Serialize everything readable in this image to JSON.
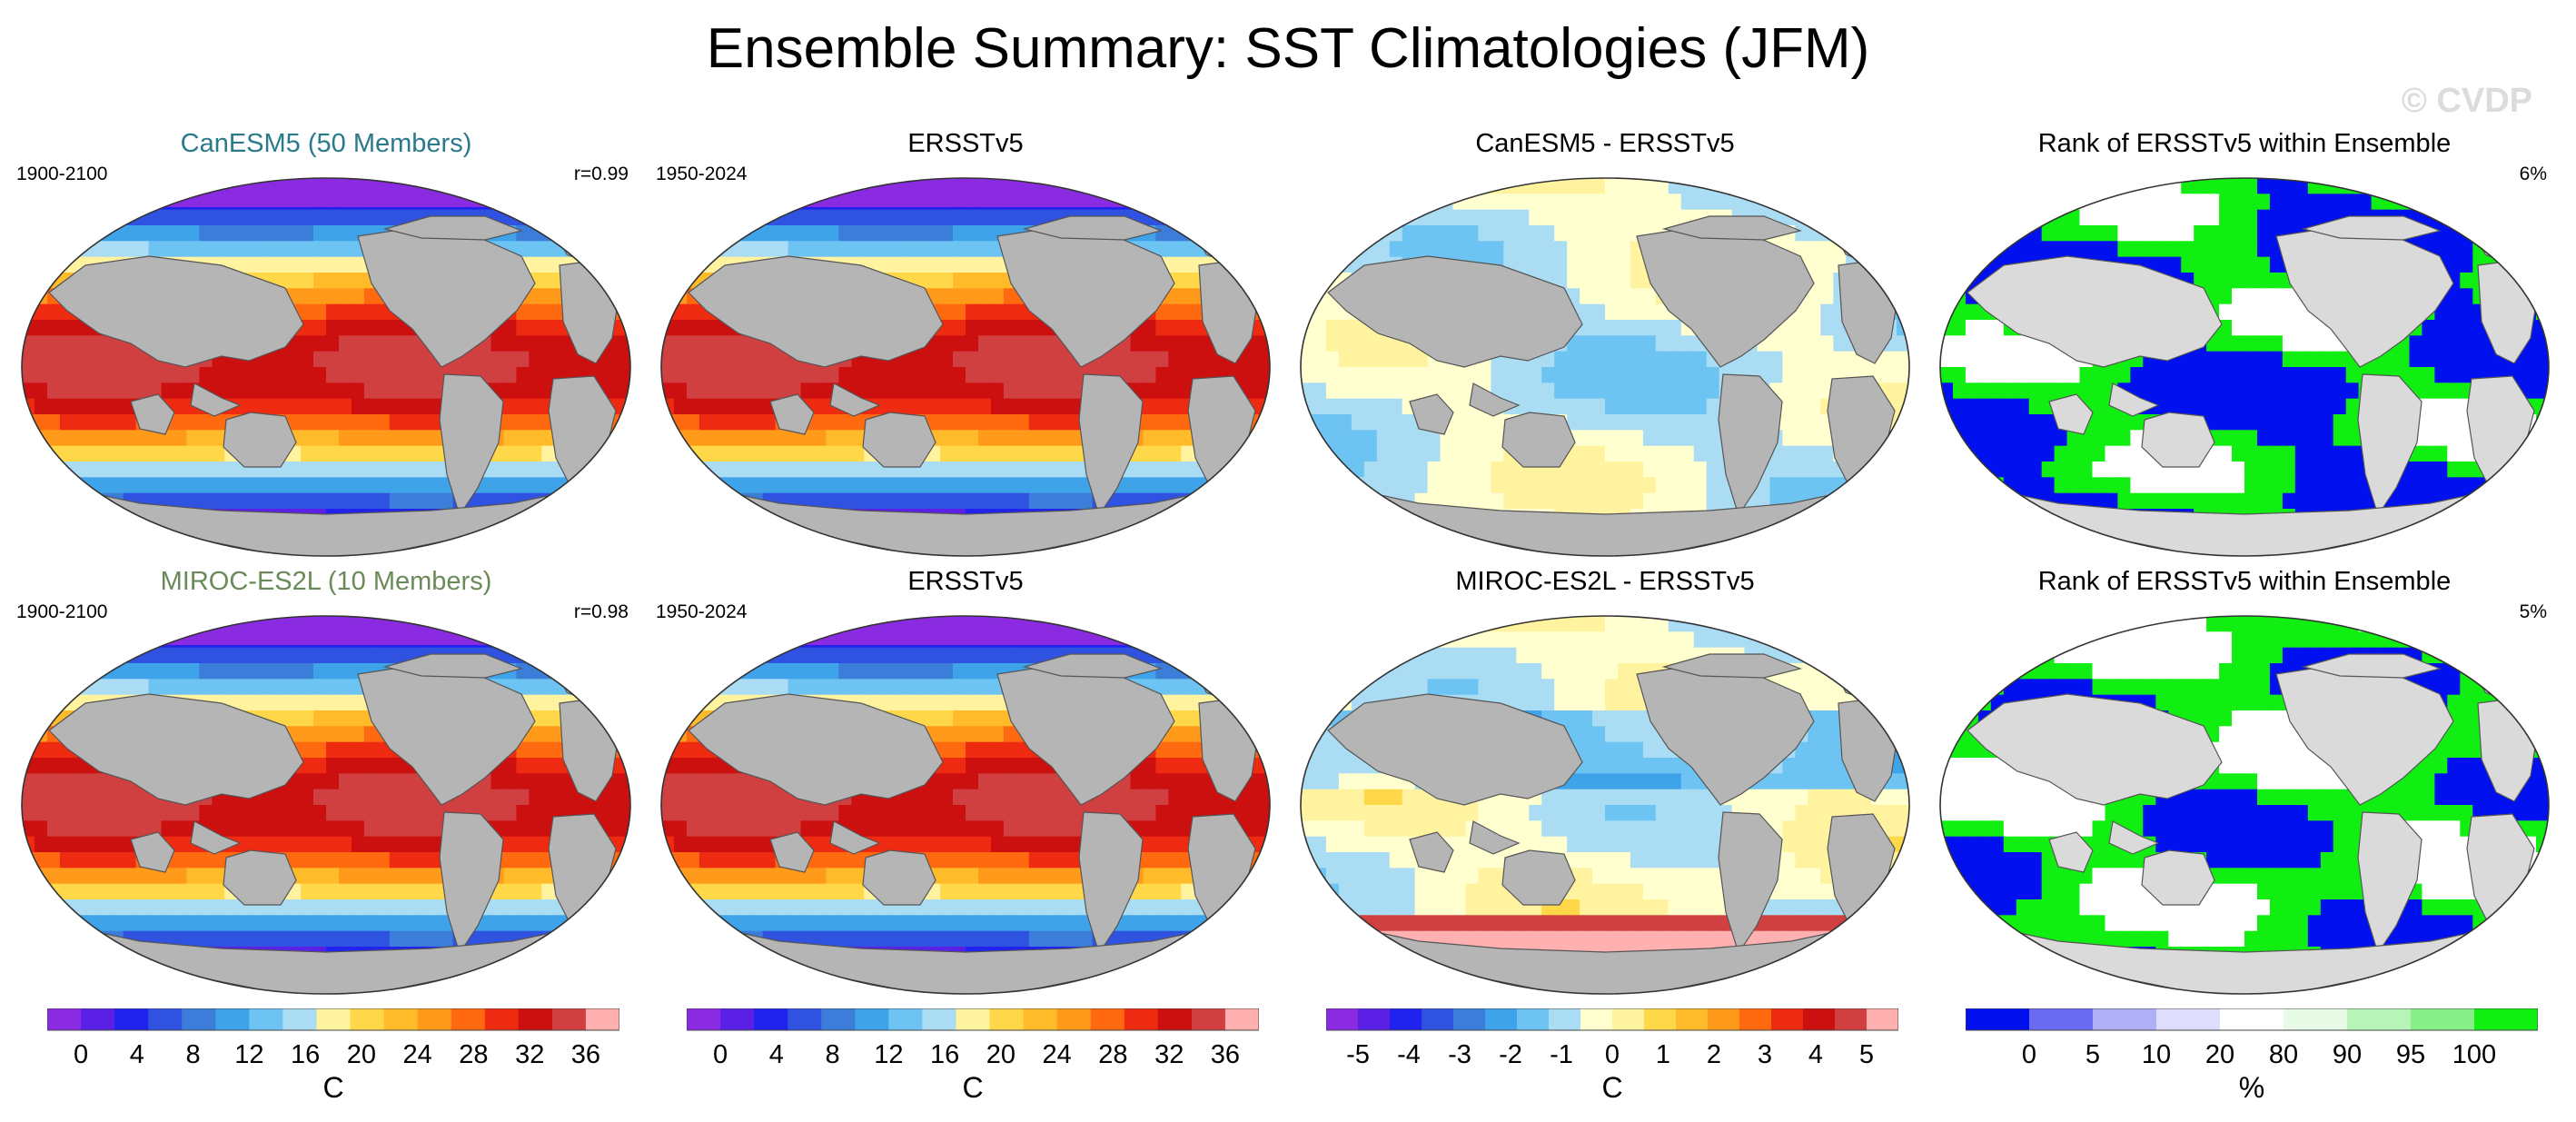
{
  "title": "Ensemble Summary: SST Climatologies (JFM)",
  "watermark": "© CVDP",
  "colors": {
    "land": "#b5b5b5",
    "land_light": "#dadada",
    "rank_blue": "#0010ee",
    "rank_green": "#11ee11"
  },
  "rows": [
    {
      "panels": [
        {
          "title": "CanESM5 (50 Members)",
          "title_color": "#2a7a8c",
          "left": "1900-2100",
          "right": "r=0.99",
          "kind": "sst"
        },
        {
          "title": "ERSSTv5",
          "title_color": "#000000",
          "left": "1950-2024",
          "right": "",
          "kind": "sst"
        },
        {
          "title": "CanESM5 - ERSSTv5",
          "title_color": "#000000",
          "left": "",
          "right": "",
          "kind": "diff1"
        },
        {
          "title": "Rank of ERSSTv5 within Ensemble",
          "title_color": "#000000",
          "left": "",
          "right": "6%",
          "kind": "rank1"
        }
      ]
    },
    {
      "panels": [
        {
          "title": "MIROC-ES2L (10 Members)",
          "title_color": "#6a8a5a",
          "left": "1900-2100",
          "right": "r=0.98",
          "kind": "sst"
        },
        {
          "title": "ERSSTv5",
          "title_color": "#000000",
          "left": "1950-2024",
          "right": "",
          "kind": "sst"
        },
        {
          "title": "MIROC-ES2L - ERSSTv5",
          "title_color": "#000000",
          "left": "",
          "right": "",
          "kind": "diff2"
        },
        {
          "title": "Rank of ERSSTv5 within Ensemble",
          "title_color": "#000000",
          "left": "",
          "right": "5%",
          "kind": "rank2"
        }
      ]
    }
  ],
  "colorbars": [
    {
      "label": "C",
      "ticks": [
        "0",
        "4",
        "8",
        "12",
        "16",
        "20",
        "24",
        "28",
        "32",
        "36"
      ],
      "colors": [
        "#8a2be2",
        "#5a20e6",
        "#2222ee",
        "#2f52e0",
        "#3b7dd8",
        "#3fa3ea",
        "#6dc3f2",
        "#aadcf4",
        "#fff3a0",
        "#ffd84a",
        "#ffbb2a",
        "#ff9a1a",
        "#ff6a10",
        "#ee2a10",
        "#cc1010",
        "#d04040",
        "#ffb0b0"
      ]
    },
    {
      "label": "C",
      "ticks": [
        "0",
        "4",
        "8",
        "12",
        "16",
        "20",
        "24",
        "28",
        "32",
        "36"
      ],
      "colors": [
        "#8a2be2",
        "#5a20e6",
        "#2222ee",
        "#2f52e0",
        "#3b7dd8",
        "#3fa3ea",
        "#6dc3f2",
        "#aadcf4",
        "#fff3a0",
        "#ffd84a",
        "#ffbb2a",
        "#ff9a1a",
        "#ff6a10",
        "#ee2a10",
        "#cc1010",
        "#d04040",
        "#ffb0b0"
      ]
    },
    {
      "label": "C",
      "ticks": [
        "-5",
        "-4",
        "-3",
        "-2",
        "-1",
        "0",
        "1",
        "2",
        "3",
        "4",
        "5"
      ],
      "colors": [
        "#8a2be2",
        "#5a20e6",
        "#2222ee",
        "#2f52e0",
        "#3b7dd8",
        "#3fa3ea",
        "#6dc3f2",
        "#aadcf4",
        "#ffffd0",
        "#fff3a0",
        "#ffd84a",
        "#ffbb2a",
        "#ff9a1a",
        "#ff6a10",
        "#ee2a10",
        "#cc1010",
        "#d04040",
        "#ffb0b0"
      ]
    },
    {
      "label": "%",
      "ticks": [
        "0",
        "5",
        "10",
        "20",
        "80",
        "90",
        "95",
        "100"
      ],
      "colors": [
        "#0010ee",
        "#6a6af2",
        "#b0b0f8",
        "#dedefc",
        "#ffffff",
        "#e6fae6",
        "#b8f4b8",
        "#88ee88",
        "#11ee11"
      ]
    }
  ]
}
